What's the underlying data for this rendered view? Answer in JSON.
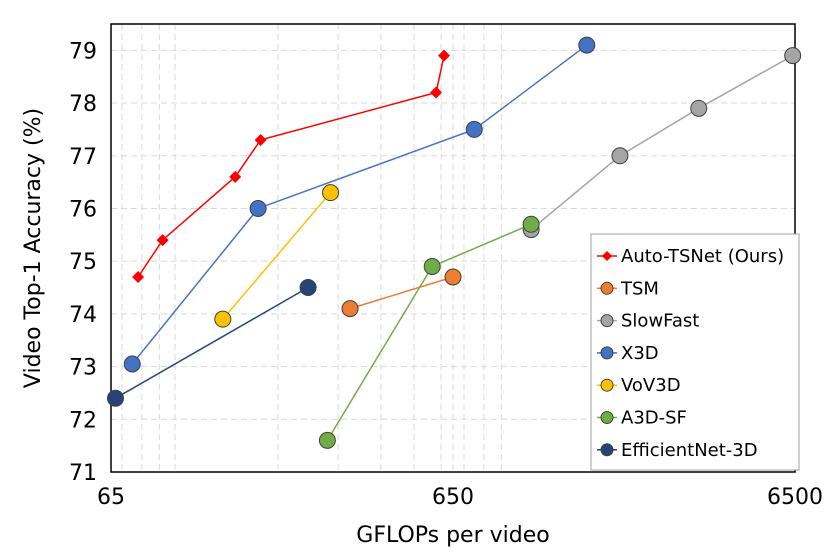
{
  "chart_data": {
    "type": "scatter",
    "title": "",
    "xlabel": "GFLOPs per video",
    "ylabel": "Video Top-1 Accuracy (%)",
    "xscale": "log",
    "xlim": [
      65,
      6500
    ],
    "ylim": [
      71,
      79.5
    ],
    "xticks": [
      65,
      650,
      6500
    ],
    "xtick_labels": [
      "65",
      "650",
      "6500"
    ],
    "yticks": [
      71,
      72,
      73,
      74,
      75,
      76,
      77,
      78,
      79
    ],
    "ytick_labels": [
      "71",
      "72",
      "73",
      "74",
      "75",
      "76",
      "77",
      "78",
      "79"
    ],
    "grid": true,
    "legend_position": "bottom-right",
    "series": [
      {
        "name": "Auto-TSNet (Ours)",
        "color": "#ff0000",
        "marker": "diamond",
        "x": [
          78,
          92,
          150,
          178,
          580,
          612
        ],
        "y": [
          74.7,
          75.4,
          76.6,
          77.3,
          78.2,
          78.9
        ]
      },
      {
        "name": "TSM",
        "color": "#ed7d31",
        "marker": "circle",
        "x": [
          325,
          650
        ],
        "y": [
          74.1,
          74.7
        ]
      },
      {
        "name": "SlowFast",
        "color": "#a5a5a5",
        "marker": "circle",
        "x": [
          1100,
          2000,
          3400,
          6400
        ],
        "y": [
          75.6,
          77.0,
          77.9,
          78.9
        ]
      },
      {
        "name": "X3D",
        "color": "#4472c4",
        "marker": "circle",
        "x": [
          75,
          175,
          750,
          1600
        ],
        "y": [
          73.05,
          76.0,
          77.5,
          79.1
        ]
      },
      {
        "name": "VoV3D",
        "color": "#ffc000",
        "marker": "circle",
        "x": [
          138,
          285
        ],
        "y": [
          73.9,
          76.3
        ]
      },
      {
        "name": "A3D-SF",
        "color": "#70ad47",
        "marker": "circle",
        "x": [
          279,
          565,
          1100
        ],
        "y": [
          71.6,
          74.9,
          75.7
        ]
      },
      {
        "name": "EfficientNet-3D",
        "color": "#264478",
        "marker": "circle",
        "x": [
          67,
          245
        ],
        "y": [
          72.4,
          74.5
        ]
      }
    ]
  }
}
